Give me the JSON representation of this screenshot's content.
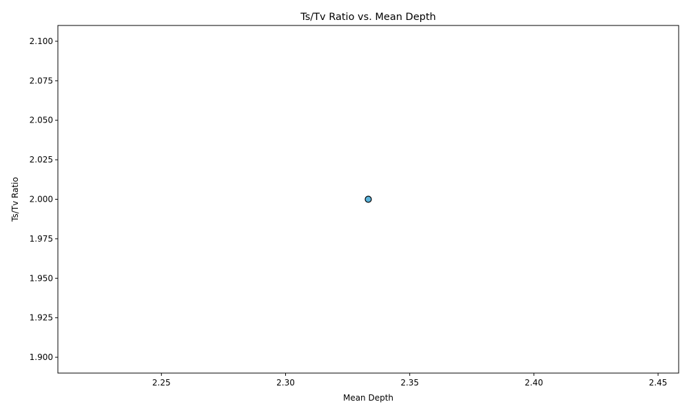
{
  "chart_data": {
    "type": "scatter",
    "title": "Ts/Tv Ratio vs. Mean Depth",
    "xlabel": "Mean Depth",
    "ylabel": "Ts/Tv Ratio",
    "xlim": [
      2.2083,
      2.4583
    ],
    "ylim": [
      1.89,
      2.11
    ],
    "xticks": [
      2.25,
      2.3,
      2.35,
      2.4,
      2.45
    ],
    "xtick_labels": [
      "2.25",
      "2.30",
      "2.35",
      "2.40",
      "2.45"
    ],
    "yticks": [
      1.9,
      1.925,
      1.95,
      1.975,
      2.0,
      2.025,
      2.05,
      2.075,
      2.1
    ],
    "ytick_labels": [
      "1.900",
      "1.925",
      "1.950",
      "1.975",
      "2.000",
      "2.025",
      "2.050",
      "2.075",
      "2.100"
    ],
    "grid": false,
    "points": [
      {
        "x": 2.3333,
        "y": 2.0
      }
    ],
    "marker_color": "#5bb4dc",
    "marker_edge_color": "#000000"
  }
}
